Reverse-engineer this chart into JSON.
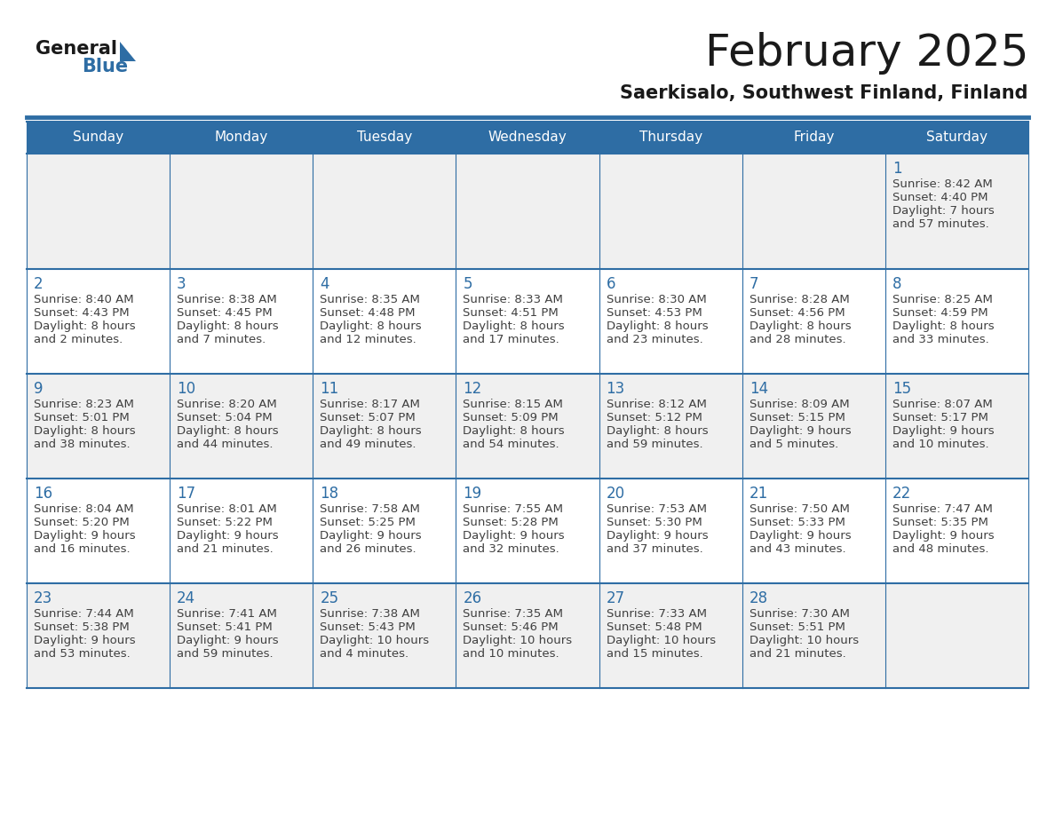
{
  "title": "February 2025",
  "subtitle": "Saerkisalo, Southwest Finland, Finland",
  "header_bg": "#2E6DA4",
  "header_text_color": "#FFFFFF",
  "cell_bg_even": "#F0F0F0",
  "cell_bg_odd": "#FFFFFF",
  "border_color": "#2E6DA4",
  "text_color": "#404040",
  "day_number_color": "#2E6DA4",
  "title_color": "#1a1a1a",
  "logo_text_color": "#1a1a1a",
  "logo_blue_color": "#2E6DA4",
  "weekdays": [
    "Sunday",
    "Monday",
    "Tuesday",
    "Wednesday",
    "Thursday",
    "Friday",
    "Saturday"
  ],
  "days_data": [
    {
      "day": 1,
      "col": 6,
      "row": 0,
      "sunrise": "8:42 AM",
      "sunset": "4:40 PM",
      "daylight": "7 hours",
      "daylight2": "and 57 minutes."
    },
    {
      "day": 2,
      "col": 0,
      "row": 1,
      "sunrise": "8:40 AM",
      "sunset": "4:43 PM",
      "daylight": "8 hours",
      "daylight2": "and 2 minutes."
    },
    {
      "day": 3,
      "col": 1,
      "row": 1,
      "sunrise": "8:38 AM",
      "sunset": "4:45 PM",
      "daylight": "8 hours",
      "daylight2": "and 7 minutes."
    },
    {
      "day": 4,
      "col": 2,
      "row": 1,
      "sunrise": "8:35 AM",
      "sunset": "4:48 PM",
      "daylight": "8 hours",
      "daylight2": "and 12 minutes."
    },
    {
      "day": 5,
      "col": 3,
      "row": 1,
      "sunrise": "8:33 AM",
      "sunset": "4:51 PM",
      "daylight": "8 hours",
      "daylight2": "and 17 minutes."
    },
    {
      "day": 6,
      "col": 4,
      "row": 1,
      "sunrise": "8:30 AM",
      "sunset": "4:53 PM",
      "daylight": "8 hours",
      "daylight2": "and 23 minutes."
    },
    {
      "day": 7,
      "col": 5,
      "row": 1,
      "sunrise": "8:28 AM",
      "sunset": "4:56 PM",
      "daylight": "8 hours",
      "daylight2": "and 28 minutes."
    },
    {
      "day": 8,
      "col": 6,
      "row": 1,
      "sunrise": "8:25 AM",
      "sunset": "4:59 PM",
      "daylight": "8 hours",
      "daylight2": "and 33 minutes."
    },
    {
      "day": 9,
      "col": 0,
      "row": 2,
      "sunrise": "8:23 AM",
      "sunset": "5:01 PM",
      "daylight": "8 hours",
      "daylight2": "and 38 minutes."
    },
    {
      "day": 10,
      "col": 1,
      "row": 2,
      "sunrise": "8:20 AM",
      "sunset": "5:04 PM",
      "daylight": "8 hours",
      "daylight2": "and 44 minutes."
    },
    {
      "day": 11,
      "col": 2,
      "row": 2,
      "sunrise": "8:17 AM",
      "sunset": "5:07 PM",
      "daylight": "8 hours",
      "daylight2": "and 49 minutes."
    },
    {
      "day": 12,
      "col": 3,
      "row": 2,
      "sunrise": "8:15 AM",
      "sunset": "5:09 PM",
      "daylight": "8 hours",
      "daylight2": "and 54 minutes."
    },
    {
      "day": 13,
      "col": 4,
      "row": 2,
      "sunrise": "8:12 AM",
      "sunset": "5:12 PM",
      "daylight": "8 hours",
      "daylight2": "and 59 minutes."
    },
    {
      "day": 14,
      "col": 5,
      "row": 2,
      "sunrise": "8:09 AM",
      "sunset": "5:15 PM",
      "daylight": "9 hours",
      "daylight2": "and 5 minutes."
    },
    {
      "day": 15,
      "col": 6,
      "row": 2,
      "sunrise": "8:07 AM",
      "sunset": "5:17 PM",
      "daylight": "9 hours",
      "daylight2": "and 10 minutes."
    },
    {
      "day": 16,
      "col": 0,
      "row": 3,
      "sunrise": "8:04 AM",
      "sunset": "5:20 PM",
      "daylight": "9 hours",
      "daylight2": "and 16 minutes."
    },
    {
      "day": 17,
      "col": 1,
      "row": 3,
      "sunrise": "8:01 AM",
      "sunset": "5:22 PM",
      "daylight": "9 hours",
      "daylight2": "and 21 minutes."
    },
    {
      "day": 18,
      "col": 2,
      "row": 3,
      "sunrise": "7:58 AM",
      "sunset": "5:25 PM",
      "daylight": "9 hours",
      "daylight2": "and 26 minutes."
    },
    {
      "day": 19,
      "col": 3,
      "row": 3,
      "sunrise": "7:55 AM",
      "sunset": "5:28 PM",
      "daylight": "9 hours",
      "daylight2": "and 32 minutes."
    },
    {
      "day": 20,
      "col": 4,
      "row": 3,
      "sunrise": "7:53 AM",
      "sunset": "5:30 PM",
      "daylight": "9 hours",
      "daylight2": "and 37 minutes."
    },
    {
      "day": 21,
      "col": 5,
      "row": 3,
      "sunrise": "7:50 AM",
      "sunset": "5:33 PM",
      "daylight": "9 hours",
      "daylight2": "and 43 minutes."
    },
    {
      "day": 22,
      "col": 6,
      "row": 3,
      "sunrise": "7:47 AM",
      "sunset": "5:35 PM",
      "daylight": "9 hours",
      "daylight2": "and 48 minutes."
    },
    {
      "day": 23,
      "col": 0,
      "row": 4,
      "sunrise": "7:44 AM",
      "sunset": "5:38 PM",
      "daylight": "9 hours",
      "daylight2": "and 53 minutes."
    },
    {
      "day": 24,
      "col": 1,
      "row": 4,
      "sunrise": "7:41 AM",
      "sunset": "5:41 PM",
      "daylight": "9 hours",
      "daylight2": "and 59 minutes."
    },
    {
      "day": 25,
      "col": 2,
      "row": 4,
      "sunrise": "7:38 AM",
      "sunset": "5:43 PM",
      "daylight": "10 hours",
      "daylight2": "and 4 minutes."
    },
    {
      "day": 26,
      "col": 3,
      "row": 4,
      "sunrise": "7:35 AM",
      "sunset": "5:46 PM",
      "daylight": "10 hours",
      "daylight2": "and 10 minutes."
    },
    {
      "day": 27,
      "col": 4,
      "row": 4,
      "sunrise": "7:33 AM",
      "sunset": "5:48 PM",
      "daylight": "10 hours",
      "daylight2": "and 15 minutes."
    },
    {
      "day": 28,
      "col": 5,
      "row": 4,
      "sunrise": "7:30 AM",
      "sunset": "5:51 PM",
      "daylight": "10 hours",
      "daylight2": "and 21 minutes."
    }
  ]
}
